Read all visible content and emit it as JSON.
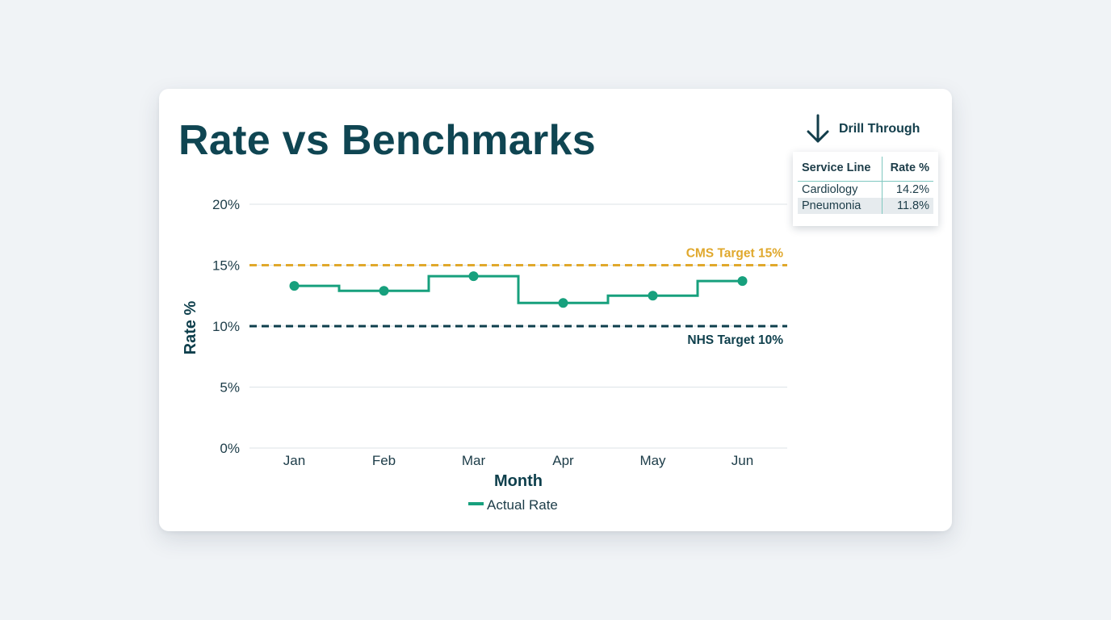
{
  "card": {
    "title": "Rate vs Benchmarks"
  },
  "drill": {
    "label": "Drill Through",
    "icon": "arrow-down-icon",
    "columns": [
      "Service Line",
      "Rate %"
    ],
    "rows": [
      {
        "service_line": "Cardiology",
        "rate": "14.2%"
      },
      {
        "service_line": "Pneumonia",
        "rate": "11.8%"
      }
    ]
  },
  "colors": {
    "actual": "#17a07d",
    "cms": "#e0a82c",
    "nhs": "#0e3f4c",
    "title": "#0f4552"
  },
  "chart_data": {
    "type": "line",
    "step": true,
    "xlabel": "Month",
    "ylabel": "Rate %",
    "categories": [
      "Jan",
      "Feb",
      "Mar",
      "Apr",
      "May",
      "Jun"
    ],
    "ylim": [
      0,
      20
    ],
    "yticks": [
      "0%",
      "5%",
      "10%",
      "15%",
      "20%"
    ],
    "ytick_values": [
      0,
      5,
      10,
      15,
      20
    ],
    "grid": true,
    "series": [
      {
        "name": "Actual Rate",
        "values": [
          13.3,
          12.9,
          14.1,
          11.9,
          12.5,
          13.7
        ]
      }
    ],
    "reference_lines": [
      {
        "label": "CMS Target 15%",
        "value": 15
      },
      {
        "label": "NHS Target 10%",
        "value": 10
      }
    ],
    "legend": "bottom-center"
  }
}
